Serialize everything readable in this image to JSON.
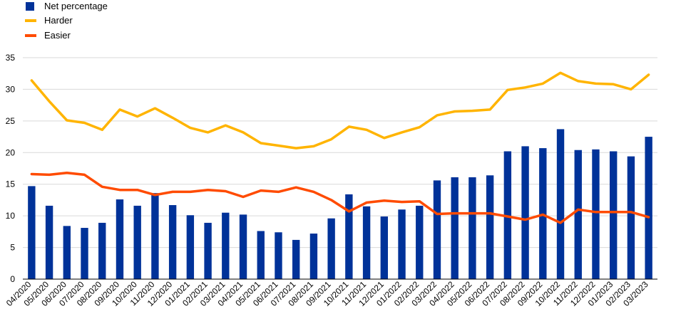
{
  "chart_data": {
    "type": "bar",
    "categories": [
      "04/2020",
      "05/2020",
      "06/2020",
      "07/2020",
      "08/2020",
      "09/2020",
      "10/2020",
      "11/2020",
      "12/2020",
      "01/2021",
      "02/2021",
      "03/2021",
      "04/2021",
      "05/2021",
      "06/2021",
      "07/2021",
      "08/2021",
      "09/2021",
      "10/2021",
      "11/2021",
      "12/2021",
      "01/2022",
      "02/2022",
      "03/2022",
      "04/2022",
      "05/2022",
      "06/2022",
      "07/2022",
      "08/2022",
      "09/2022",
      "10/2022",
      "11/2022",
      "12/2022",
      "01/2023",
      "02/2023",
      "03/2023"
    ],
    "series": [
      {
        "name": "Net percentage",
        "kind": "bar",
        "color": "#003299",
        "values": [
          14.7,
          11.6,
          8.4,
          8.1,
          8.9,
          12.6,
          11.6,
          13.6,
          11.7,
          10.1,
          8.9,
          10.5,
          10.2,
          7.6,
          7.4,
          6.2,
          7.2,
          9.6,
          13.4,
          11.5,
          9.9,
          11.0,
          11.6,
          15.6,
          16.1,
          16.1,
          16.4,
          20.2,
          21.0,
          20.7,
          23.7,
          20.4,
          20.5,
          20.2,
          19.4,
          22.5
        ]
      },
      {
        "name": "Harder",
        "kind": "line",
        "color": "#FFB400",
        "values": [
          31.4,
          28.1,
          25.1,
          24.7,
          23.6,
          26.8,
          25.7,
          27.0,
          25.5,
          23.9,
          23.2,
          24.3,
          23.2,
          21.5,
          21.1,
          20.7,
          21.0,
          22.1,
          24.1,
          23.6,
          22.3,
          23.2,
          24.0,
          25.9,
          26.5,
          26.6,
          26.8,
          29.9,
          30.3,
          30.9,
          32.6,
          31.3,
          30.9,
          30.8,
          30.0,
          32.3
        ]
      },
      {
        "name": "Easier",
        "kind": "line",
        "color": "#FF4B00",
        "values": [
          16.6,
          16.5,
          16.8,
          16.5,
          14.6,
          14.1,
          14.1,
          13.3,
          13.8,
          13.8,
          14.1,
          13.9,
          13.0,
          14.0,
          13.8,
          14.5,
          13.8,
          12.5,
          10.7,
          12.1,
          12.4,
          12.2,
          12.3,
          10.3,
          10.4,
          10.4,
          10.4,
          9.9,
          9.4,
          10.2,
          8.9,
          11.0,
          10.6,
          10.6,
          10.6,
          9.8
        ]
      }
    ],
    "ylim": [
      0,
      35
    ],
    "yticks": [
      0,
      5,
      10,
      15,
      20,
      25,
      30,
      35
    ],
    "grid": true,
    "legend_position": "top-left",
    "title": "",
    "xlabel": "",
    "ylabel": ""
  }
}
